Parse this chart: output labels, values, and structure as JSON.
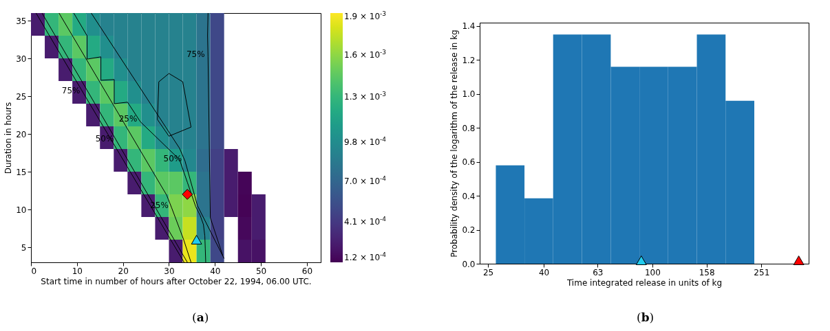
{
  "chart_data": [
    {
      "type": "heatmap",
      "xlabel": "Start time in number of hours after October 22, 1994, 06.00 UTC.",
      "ylabel": "Duration in hours",
      "x": [
        1.5,
        4.5,
        7.5,
        10.5,
        13.5,
        16.5,
        19.5,
        22.5,
        25.5,
        28.5,
        31.5,
        34.5,
        37.5,
        40.5,
        43.5,
        46.5,
        49.5
      ],
      "y": [
        34.5,
        31.5,
        28.5,
        25.5,
        22.5,
        19.5,
        16.5,
        13.5,
        10.5,
        7.5,
        4.5
      ],
      "cells": [
        [
          0.00025,
          0.0013,
          0.00145,
          0.0012,
          0.001,
          0.0009,
          0.0009,
          0.0009,
          0.0009,
          0.0009,
          0.0009,
          0.0009,
          0.0008,
          0.0005,
          null,
          null,
          null
        ],
        [
          null,
          0.00025,
          0.0013,
          0.00145,
          0.0012,
          0.001,
          0.0009,
          0.0009,
          0.0009,
          0.0009,
          0.0009,
          0.0009,
          0.0008,
          0.0005,
          null,
          null,
          null
        ],
        [
          null,
          null,
          0.00025,
          0.0013,
          0.00145,
          0.0012,
          0.001,
          0.0009,
          0.0009,
          0.0009,
          0.0009,
          0.0009,
          0.0008,
          0.0005,
          null,
          null,
          null
        ],
        [
          null,
          null,
          null,
          0.00025,
          0.0013,
          0.00145,
          0.0012,
          0.001,
          0.0009,
          0.0009,
          0.0009,
          0.0009,
          0.0008,
          0.0005,
          null,
          null,
          null
        ],
        [
          null,
          null,
          null,
          null,
          0.00025,
          0.0013,
          0.00145,
          0.0012,
          0.001,
          0.0009,
          0.0009,
          0.0009,
          0.0008,
          0.0005,
          null,
          null,
          null
        ],
        [
          null,
          null,
          null,
          null,
          null,
          0.00025,
          0.0013,
          0.00145,
          0.0012,
          0.001,
          0.0009,
          0.0009,
          0.0008,
          0.0005,
          null,
          null,
          null
        ],
        [
          null,
          null,
          null,
          null,
          null,
          null,
          0.00025,
          0.0013,
          0.00145,
          0.0013,
          0.0011,
          0.00095,
          0.00075,
          0.00045,
          0.00025,
          null,
          null
        ],
        [
          null,
          null,
          null,
          null,
          null,
          null,
          null,
          0.00025,
          0.0013,
          0.00145,
          0.00145,
          0.0013,
          0.0008,
          0.00045,
          0.00025,
          0.00014,
          null
        ],
        [
          null,
          null,
          null,
          null,
          null,
          null,
          null,
          null,
          0.00025,
          0.0013,
          0.00155,
          0.0016,
          0.0008,
          0.00045,
          0.00025,
          0.00013,
          0.00025
        ],
        [
          null,
          null,
          null,
          null,
          null,
          null,
          null,
          null,
          null,
          0.00025,
          0.0015,
          0.00175,
          0.0009,
          0.00045,
          null,
          0.00015,
          0.00025
        ],
        [
          null,
          null,
          null,
          null,
          null,
          null,
          null,
          null,
          null,
          null,
          0.00025,
          0.00185,
          0.0013,
          0.0005,
          null,
          0.0002,
          0.0002
        ]
      ],
      "xlim": [
        0,
        63
      ],
      "xticks": [
        0,
        10,
        20,
        30,
        40,
        50,
        60
      ],
      "ylim": [
        3,
        36
      ],
      "yticks": [
        5,
        10,
        15,
        20,
        25,
        30,
        35
      ],
      "clim": [
        0.00012,
        0.0019
      ],
      "cticks": [
        {
          "value": 0.00012,
          "label": "1.2 × 10$^{-4}$"
        },
        {
          "value": 0.00041,
          "label": "4.1 × 10$^{-4}$"
        },
        {
          "value": 0.0007,
          "label": "7.0 × 10$^{-4}$"
        },
        {
          "value": 0.00098,
          "label": "9.8 × 10$^{-4}$"
        },
        {
          "value": 0.0013,
          "label": "1.3 × 10$^{-3}$"
        },
        {
          "value": 0.0016,
          "label": "1.6 × 10$^{-3}$"
        },
        {
          "value": 0.0019,
          "label": "1.9 × 10$^{-3}$"
        }
      ],
      "series": [
        {
          "type": "line",
          "name": "75%",
          "color": "#000000",
          "x": [
            1.1,
            11.4,
            33.3
          ],
          "values": [
            36,
            25.4,
            3
          ]
        },
        {
          "type": "line",
          "name": "50%",
          "color": "#000000",
          "x": [
            2.4,
            18.7,
            34.0
          ],
          "values": [
            36,
            19,
            3
          ]
        },
        {
          "type": "line",
          "name": "25%",
          "color": "#000000",
          "x": [
            6.1,
            29.5,
            30.6,
            33.2,
            34.8
          ],
          "values": [
            36,
            11.9,
            10.2,
            6,
            3
          ]
        },
        {
          "type": "line",
          "name": "25%",
          "color": "#000000",
          "x": [
            9.3,
            12.2,
            12.2,
            15.2,
            15.2,
            18.1,
            18.1,
            21.0,
            23.8,
            32.3,
            34.0,
            35.8,
            36.8,
            37.5,
            37.8,
            37.9,
            38.0
          ],
          "values": [
            36,
            33.0,
            29.9,
            30.2,
            27.1,
            27.2,
            24.0,
            24.2,
            21.6,
            16.6,
            13.6,
            10.4,
            9.2,
            8.0,
            6.5,
            4.8,
            3
          ]
        },
        {
          "type": "line",
          "name": "50%",
          "color": "#000000",
          "x": [
            13.1,
            32.3,
            33.5,
            36.2,
            42.0
          ],
          "values": [
            36,
            18.1,
            16.4,
            10.5,
            3.5
          ]
        },
        {
          "type": "line",
          "name": "75%",
          "color": "#000000",
          "x": [
            38.5,
            38.4,
            38.5,
            39.0,
            41.7
          ],
          "values": [
            36,
            33,
            30.2,
            8.9,
            3.9
          ]
        },
        {
          "type": "line",
          "color": "#000000",
          "x": [
            27.8,
            30.0,
            33.0,
            34.8
          ],
          "values": [
            26.9,
            28.0,
            26.9,
            20.9
          ]
        },
        {
          "type": "line",
          "color": "#000000",
          "x": [
            27.5,
            30.0,
            34.8
          ],
          "values": [
            21.9,
            19.7,
            20.9
          ]
        },
        {
          "type": "line",
          "color": "#000000",
          "x": [
            27.5,
            27.8
          ],
          "values": [
            21.9,
            26.9
          ]
        },
        {
          "type": "scatter",
          "x": [
            34
          ],
          "values": [
            12
          ],
          "color": "#ff0000",
          "marker": "diamond"
        },
        {
          "type": "scatter",
          "x": [
            36
          ],
          "values": [
            6
          ],
          "color": "#22ccee",
          "marker": "triangle"
        }
      ],
      "annotations": [
        "(a)"
      ],
      "grid": false
    },
    {
      "type": "histogram",
      "xlabel": "Time integrated release in units of kg",
      "ylabel": "Probability density of the logarithm of the release in kg",
      "bins": [
        26.7,
        34.0,
        43.3,
        55.2,
        70.4,
        89.7,
        114.2,
        145.6,
        185.5,
        236.4
      ],
      "values": [
        0.58,
        0.385,
        1.35,
        1.35,
        1.16,
        1.16,
        1.16,
        1.35,
        0.96
      ],
      "color": "#1f77b4",
      "log": "x",
      "xlim": [
        23.3,
        374
      ],
      "xticks": [
        25,
        40,
        63,
        100,
        158,
        251
      ],
      "ylim": [
        0,
        1.42
      ],
      "yticks": [
        {
          "value": 0,
          "label": "0.0"
        },
        0.2,
        0.4,
        0.6,
        0.8,
        {
          "value": 1,
          "label": "1.0"
        },
        1.2,
        1.4
      ],
      "series": [
        {
          "type": "scatter",
          "x": [
            91.1
          ],
          "values": [
            0.02
          ],
          "color": "#22ccee",
          "marker": "triangle"
        },
        {
          "type": "scatter",
          "x": [
            344
          ],
          "values": [
            0.02
          ],
          "color": "#ff0000",
          "marker": "triangle"
        }
      ],
      "annotations": [
        "(b)"
      ],
      "grid": false
    }
  ]
}
